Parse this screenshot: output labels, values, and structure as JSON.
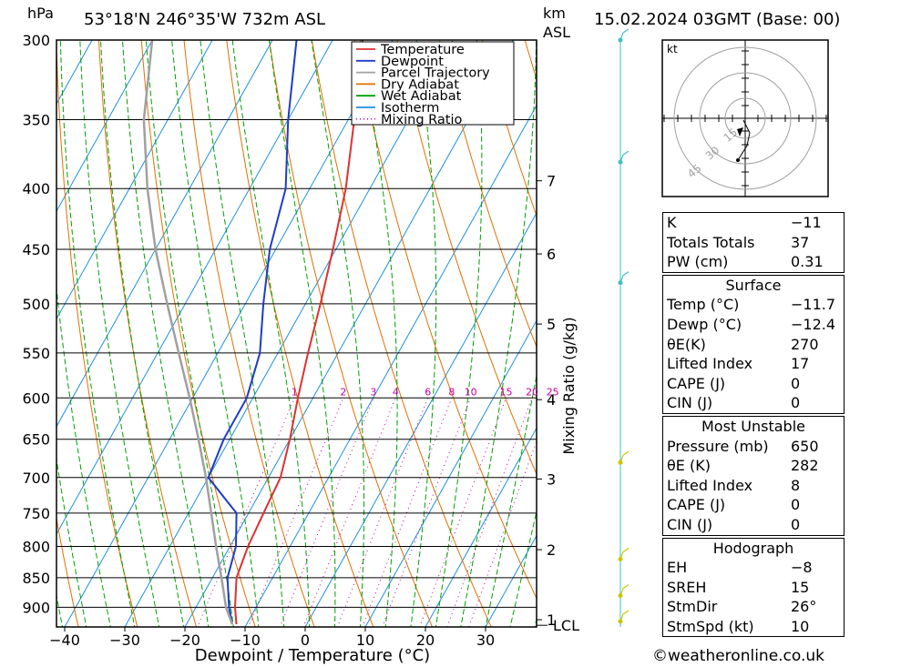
{
  "header": {
    "unit_left": "hPa",
    "location": "53°18'N  246°35'W  732m  ASL",
    "unit_km": "km",
    "unit_asl": "ASL",
    "datetime": "15.02.2024  03GMT  (Base: 00)"
  },
  "legend": {
    "items": [
      {
        "label": "Temperature",
        "color": "#e03030",
        "style": "solid"
      },
      {
        "label": "Dewpoint",
        "color": "#1e3cc8",
        "style": "solid"
      },
      {
        "label": "Parcel Trajectory",
        "color": "#a0a0a0",
        "style": "solid"
      },
      {
        "label": "Dry Adiabat",
        "color": "#e07000",
        "style": "solid"
      },
      {
        "label": "Wet Adiabat",
        "color": "#00a000",
        "style": "solid"
      },
      {
        "label": "Isotherm",
        "color": "#1e90e0",
        "style": "solid"
      },
      {
        "label": "Mixing Ratio",
        "color": "#c000a0",
        "style": "dotted"
      }
    ]
  },
  "chart_data": {
    "type": "line",
    "title": "",
    "xlabel": "Dewpoint / Temperature (°C)",
    "ylabel": "",
    "xlim": [
      -43,
      37
    ],
    "pressure_levels": [
      300,
      350,
      400,
      450,
      500,
      550,
      600,
      650,
      700,
      750,
      800,
      850,
      900
    ],
    "pressure_range": [
      300,
      935
    ],
    "x_ticks": [
      -40,
      -30,
      -20,
      -10,
      0,
      10,
      20,
      30
    ],
    "x_tick_labels": [
      "−40",
      "−30",
      "−20",
      "−10",
      "0",
      "10",
      "20",
      "30"
    ],
    "km_ticks": [
      {
        "p": 922,
        "label": "1"
      },
      {
        "p": 805,
        "label": "2"
      },
      {
        "p": 702,
        "label": "3"
      },
      {
        "p": 602,
        "label": "4"
      },
      {
        "p": 520,
        "label": "5"
      },
      {
        "p": 454,
        "label": "6"
      },
      {
        "p": 394,
        "label": "7"
      }
    ],
    "lcl": {
      "p": 932,
      "label": "LCL"
    },
    "mixing_ratio_axis_label": "Mixing Ratio (g/kg)",
    "mixing_ratio_labels": [
      "1",
      "2",
      "3",
      "4",
      "6",
      "8",
      "10",
      "15",
      "20",
      "25"
    ],
    "mixing_ratio_values": [
      1,
      2,
      3,
      4,
      6,
      8,
      10,
      15,
      20,
      25
    ],
    "skew_deg_per_log": 48,
    "series": [
      {
        "name": "Temperature",
        "color": "#e03030",
        "points": [
          [
            -11.7,
            930
          ],
          [
            -13.5,
            900
          ],
          [
            -16,
            850
          ],
          [
            -17,
            800
          ],
          [
            -17.5,
            750
          ],
          [
            -18,
            700
          ],
          [
            -20,
            650
          ],
          [
            -22.5,
            600
          ],
          [
            -25,
            550
          ],
          [
            -27.5,
            500
          ],
          [
            -30.5,
            450
          ],
          [
            -34,
            400
          ],
          [
            -39,
            350
          ],
          [
            -45,
            300
          ]
        ]
      },
      {
        "name": "Dewpoint",
        "color": "#1e3cc8",
        "points": [
          [
            -12.4,
            930
          ],
          [
            -14.5,
            900
          ],
          [
            -17.5,
            850
          ],
          [
            -19,
            800
          ],
          [
            -22,
            750
          ],
          [
            -30,
            700
          ],
          [
            -31,
            650
          ],
          [
            -31,
            600
          ],
          [
            -33,
            550
          ],
          [
            -37,
            500
          ],
          [
            -41,
            450
          ],
          [
            -44,
            400
          ],
          [
            -50,
            350
          ],
          [
            -56,
            300
          ]
        ]
      },
      {
        "name": "Parcel Trajectory",
        "color": "#a0a0a0",
        "points": [
          [
            -12.4,
            930
          ],
          [
            -15,
            900
          ],
          [
            -18.5,
            850
          ],
          [
            -22.3,
            800
          ],
          [
            -26.2,
            750
          ],
          [
            -30.4,
            700
          ],
          [
            -35.2,
            650
          ],
          [
            -40.5,
            600
          ],
          [
            -46.5,
            550
          ],
          [
            -53,
            500
          ],
          [
            -60,
            450
          ],
          [
            -67,
            400
          ],
          [
            -74,
            350
          ],
          [
            -80,
            300
          ]
        ]
      }
    ]
  },
  "hodograph": {
    "unit": "kt",
    "ring_labels": [
      "15",
      "30",
      "45"
    ]
  },
  "wind_barbs": [
    {
      "p": 300,
      "color": "#40c0c0"
    },
    {
      "p": 380,
      "color": "#40c0c0"
    },
    {
      "p": 480,
      "color": "#40c0c0"
    },
    {
      "p": 680,
      "color": "#c8c800"
    },
    {
      "p": 820,
      "color": "#c8c800"
    },
    {
      "p": 880,
      "color": "#c8c800"
    },
    {
      "p": 925,
      "color": "#c8c800"
    }
  ],
  "indices": {
    "top": [
      {
        "label": "K",
        "value": "−11"
      },
      {
        "label": "Totals Totals",
        "value": "37"
      },
      {
        "label": "PW (cm)",
        "value": "0.31"
      }
    ],
    "surface": {
      "title": "Surface",
      "rows": [
        {
          "label": "Temp (°C)",
          "value": "−11.7"
        },
        {
          "label": "Dewp (°C)",
          "value": "−12.4"
        },
        {
          "label": "θE(K)",
          "value": "270"
        },
        {
          "label": "Lifted Index",
          "value": "17"
        },
        {
          "label": "CAPE (J)",
          "value": "0"
        },
        {
          "label": "CIN (J)",
          "value": "0"
        }
      ]
    },
    "most_unstable": {
      "title": "Most Unstable",
      "rows": [
        {
          "label": "Pressure (mb)",
          "value": "650"
        },
        {
          "label": "θE (K)",
          "value": "282"
        },
        {
          "label": "Lifted Index",
          "value": "8"
        },
        {
          "label": "CAPE (J)",
          "value": "0"
        },
        {
          "label": "CIN (J)",
          "value": "0"
        }
      ]
    },
    "hodograph": {
      "title": "Hodograph",
      "rows": [
        {
          "label": "EH",
          "value": "−8"
        },
        {
          "label": "SREH",
          "value": "15"
        },
        {
          "label": "StmDir",
          "value": "26°"
        },
        {
          "label": "StmSpd (kt)",
          "value": "10"
        }
      ]
    }
  },
  "footer": {
    "copyright": "©weatheronline.co.uk"
  }
}
